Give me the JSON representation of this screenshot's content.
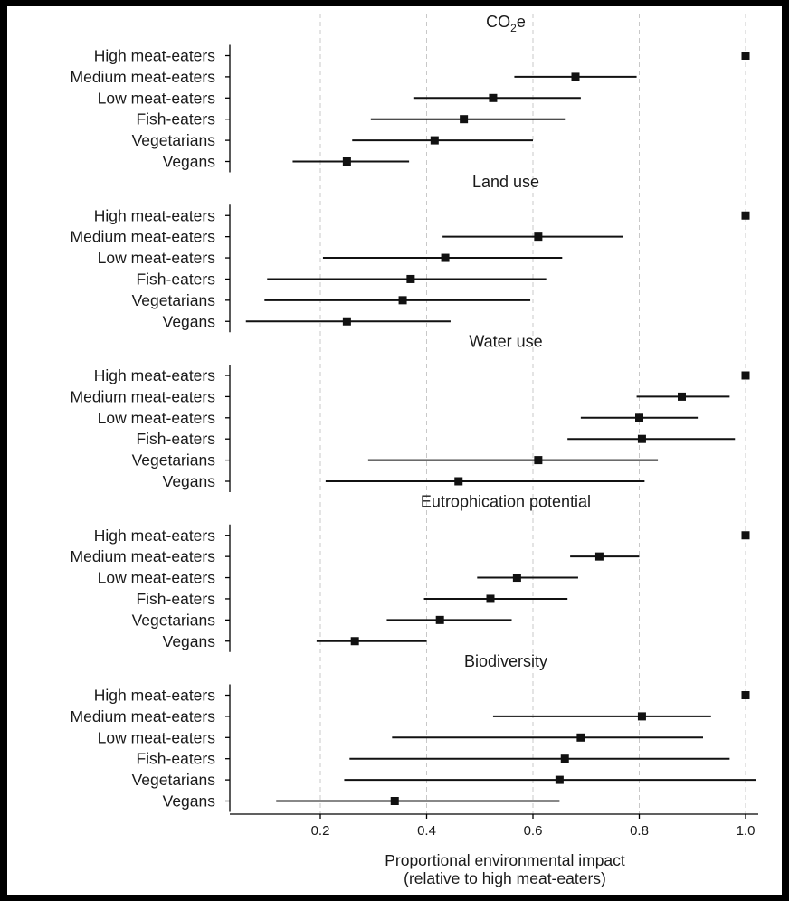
{
  "chart_data": {
    "type": "forest",
    "categories": [
      "High meat-eaters",
      "Medium meat-eaters",
      "Low meat-eaters",
      "Fish-eaters",
      "Vegetarians",
      "Vegans"
    ],
    "panels": [
      {
        "title": "CO₂e",
        "points": [
          {
            "estimate": 1.0,
            "low": null,
            "high": null
          },
          {
            "estimate": 0.68,
            "low": 0.565,
            "high": 0.795
          },
          {
            "estimate": 0.525,
            "low": 0.375,
            "high": 0.69
          },
          {
            "estimate": 0.47,
            "low": 0.295,
            "high": 0.66
          },
          {
            "estimate": 0.415,
            "low": 0.26,
            "high": 0.6
          },
          {
            "estimate": 0.25,
            "low": 0.148,
            "high": 0.367
          }
        ]
      },
      {
        "title": "Land use",
        "points": [
          {
            "estimate": 1.0,
            "low": null,
            "high": null
          },
          {
            "estimate": 0.61,
            "low": 0.43,
            "high": 0.77
          },
          {
            "estimate": 0.435,
            "low": 0.205,
            "high": 0.655
          },
          {
            "estimate": 0.37,
            "low": 0.1,
            "high": 0.625
          },
          {
            "estimate": 0.355,
            "low": 0.095,
            "high": 0.595
          },
          {
            "estimate": 0.25,
            "low": 0.06,
            "high": 0.445
          }
        ]
      },
      {
        "title": "Water use",
        "points": [
          {
            "estimate": 1.0,
            "low": null,
            "high": null
          },
          {
            "estimate": 0.88,
            "low": 0.795,
            "high": 0.97
          },
          {
            "estimate": 0.8,
            "low": 0.69,
            "high": 0.91
          },
          {
            "estimate": 0.805,
            "low": 0.665,
            "high": 0.98
          },
          {
            "estimate": 0.61,
            "low": 0.29,
            "high": 0.835
          },
          {
            "estimate": 0.46,
            "low": 0.21,
            "high": 0.81
          }
        ]
      },
      {
        "title": "Eutrophication potential",
        "points": [
          {
            "estimate": 1.0,
            "low": null,
            "high": null
          },
          {
            "estimate": 0.725,
            "low": 0.67,
            "high": 0.8
          },
          {
            "estimate": 0.57,
            "low": 0.495,
            "high": 0.685
          },
          {
            "estimate": 0.52,
            "low": 0.395,
            "high": 0.665
          },
          {
            "estimate": 0.425,
            "low": 0.325,
            "high": 0.56
          },
          {
            "estimate": 0.265,
            "low": 0.193,
            "high": 0.4
          }
        ]
      },
      {
        "title": "Biodiversity",
        "points": [
          {
            "estimate": 1.0,
            "low": null,
            "high": null
          },
          {
            "estimate": 0.805,
            "low": 0.525,
            "high": 0.935
          },
          {
            "estimate": 0.69,
            "low": 0.335,
            "high": 0.92
          },
          {
            "estimate": 0.66,
            "low": 0.255,
            "high": 0.97
          },
          {
            "estimate": 0.65,
            "low": 0.245,
            "high": 1.02
          },
          {
            "estimate": 0.34,
            "low": 0.117,
            "high": 0.65
          }
        ]
      }
    ],
    "xticks": [
      0.2,
      0.4,
      0.6,
      0.8,
      1.0
    ],
    "xtick_labels": [
      "0.2",
      "0.4",
      "0.6",
      "0.8",
      "1.0"
    ],
    "xlim": [
      0.03,
      1.04
    ],
    "xlabel_line1": "Proportional environmental impact",
    "xlabel_line2": "(relative to high meat-eaters)",
    "grid": "vertical dashed",
    "colors": {
      "marker": "#111111",
      "line": "#111111",
      "grid": "#c8c8c8",
      "frame": "#000000"
    }
  }
}
